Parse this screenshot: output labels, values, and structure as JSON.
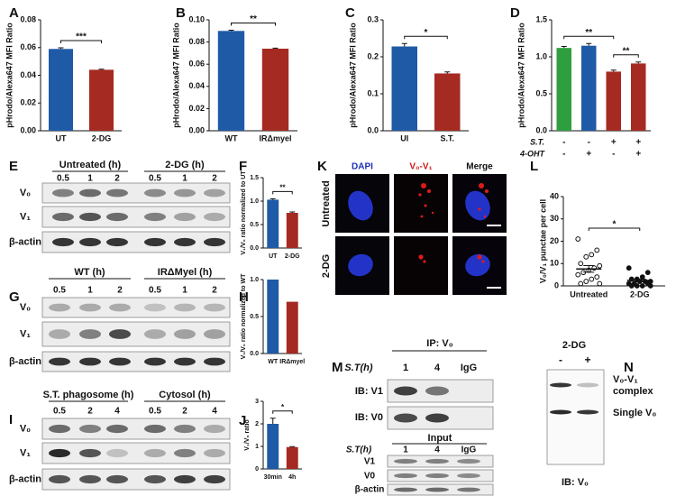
{
  "chart_data": [
    {
      "panel": "A",
      "type": "bar",
      "ylabel": "pHrodo/Alexa647 MFI Ratio",
      "categories": [
        "UT",
        "2-DG"
      ],
      "values": [
        0.059,
        0.044
      ],
      "errors": [
        0.0008,
        0.0004
      ],
      "colors": [
        "#1f5aa6",
        "#a52a22"
      ],
      "ylim": [
        0,
        0.08
      ],
      "yticks": [
        {
          "value": 0,
          "label": "0.00"
        },
        {
          "value": 0.02,
          "label": "0.02"
        },
        {
          "value": 0.04,
          "label": "0.04"
        },
        {
          "value": 0.06,
          "label": "0.06"
        },
        {
          "value": 0.08,
          "label": "0.08"
        }
      ],
      "significance": [
        "***"
      ]
    },
    {
      "panel": "B",
      "type": "bar",
      "ylabel": "pHrodo/Alexa647 MFI Ratio",
      "categories": [
        "WT",
        "IRΔmyel"
      ],
      "values": [
        0.09,
        0.074
      ],
      "errors": [
        0.0006,
        0.0005
      ],
      "colors": [
        "#1f5aa6",
        "#a52a22"
      ],
      "ylim": [
        0,
        0.1
      ],
      "yticks": [
        {
          "value": 0,
          "label": "0.00"
        },
        {
          "value": 0.02,
          "label": "0.02"
        },
        {
          "value": 0.04,
          "label": "0.04"
        },
        {
          "value": 0.06,
          "label": "0.06"
        },
        {
          "value": 0.08,
          "label": "0.08"
        },
        {
          "value": 0.1,
          "label": "0.10"
        }
      ],
      "significance": [
        "**"
      ]
    },
    {
      "panel": "C",
      "type": "bar",
      "ylabel": "pHrodo/Alexa647 MFI Ratio",
      "categories": [
        "UI",
        "S.T."
      ],
      "values": [
        0.228,
        0.155
      ],
      "errors": [
        0.008,
        0.004
      ],
      "colors": [
        "#1f5aa6",
        "#a52a22"
      ],
      "ylim": [
        0,
        0.3
      ],
      "yticks": [
        {
          "value": 0,
          "label": "0.0"
        },
        {
          "value": 0.1,
          "label": "0.1"
        },
        {
          "value": 0.2,
          "label": "0.2"
        },
        {
          "value": 0.3,
          "label": "0.3"
        }
      ],
      "significance": [
        "*"
      ]
    },
    {
      "panel": "D",
      "type": "bar",
      "ylabel": "pHrodo/Alexa647 MFI Ratio",
      "values": [
        1.12,
        1.15,
        0.8,
        0.91
      ],
      "errors": [
        0.02,
        0.03,
        0.02,
        0.02
      ],
      "colors": [
        "#2e9e3e",
        "#1f5aa6",
        "#a52a22",
        "#a52a22"
      ],
      "ylim": [
        0,
        1.5
      ],
      "yticks": [
        {
          "value": 0,
          "label": "0.0"
        },
        {
          "value": 0.5,
          "label": "0.5"
        },
        {
          "value": 1,
          "label": "1.0"
        },
        {
          "value": 1.5,
          "label": "1.5"
        }
      ],
      "conditions": [
        {
          "label": "S.T.",
          "values": [
            "-",
            "-",
            "+",
            "+"
          ]
        },
        {
          "label": "4-OHT",
          "values": [
            "-",
            "+",
            "-",
            "+"
          ]
        }
      ],
      "significance": [
        "**",
        "**"
      ]
    },
    {
      "panel": "F",
      "type": "bar",
      "ylabel": "V₁/V₀ ratio normalized to UT",
      "categories": [
        "UT",
        "2-DG"
      ],
      "values": [
        1.03,
        0.75
      ],
      "errors": [
        0.02,
        0.02
      ],
      "colors": [
        "#1f5aa6",
        "#a52a22"
      ],
      "ylim": [
        0,
        1.5
      ],
      "yticks": [
        {
          "value": 0,
          "label": "0.0"
        },
        {
          "value": 0.5,
          "label": "0.5"
        },
        {
          "value": 1,
          "label": "1.0"
        },
        {
          "value": 1.5,
          "label": "1.5"
        }
      ],
      "significance": [
        "**"
      ]
    },
    {
      "panel": "H",
      "type": "bar",
      "ylabel": "V₁/V₀ ratio normalized to WT",
      "categories": [
        "WT",
        "IRΔmyel"
      ],
      "values": [
        1.0,
        0.7
      ],
      "colors": [
        "#1f5aa6",
        "#a52a22"
      ],
      "ylim": [
        0,
        1
      ],
      "yticks": [
        {
          "value": 0,
          "label": "0.0"
        },
        {
          "value": 0.5,
          "label": "0.5"
        },
        {
          "value": 1,
          "label": "1.0"
        }
      ]
    },
    {
      "panel": "J",
      "type": "bar",
      "ylabel": "V₁/V₀ ratio",
      "categories": [
        "30min",
        "4h"
      ],
      "values": [
        2.0,
        0.97
      ],
      "errors": [
        0.25,
        0.02
      ],
      "colors": [
        "#1f5aa6",
        "#a52a22"
      ],
      "ylim": [
        0,
        3
      ],
      "yticks": [
        0,
        1,
        2,
        3
      ],
      "significance": [
        "*"
      ]
    },
    {
      "panel": "L",
      "type": "dot",
      "ylabel": "V₀/V₁ punctae per cell",
      "categories": [
        "Untreated",
        "2-DG"
      ],
      "points": [
        [
          21,
          16,
          14,
          13,
          10,
          9,
          8,
          7,
          6,
          5,
          4,
          3,
          2,
          1,
          1
        ],
        [
          8,
          6,
          4,
          3,
          3,
          2,
          2,
          2,
          1,
          1,
          1,
          0,
          0,
          0,
          0
        ]
      ],
      "means": [
        7.6,
        2.4
      ],
      "errors": [
        1.5,
        0.6
      ],
      "ylim": [
        0,
        40
      ],
      "yticks": [
        0,
        10,
        20,
        30,
        40
      ],
      "significance": [
        "*"
      ]
    }
  ],
  "blots": [
    {
      "panel": "E",
      "groups": [
        {
          "label": "Untreated (h)",
          "lanes": [
            "0.5",
            "1",
            "2"
          ]
        },
        {
          "label": "2-DG (h)",
          "lanes": [
            "0.5",
            "1",
            "2"
          ]
        }
      ],
      "rows": [
        "V₀",
        "V₁",
        "β-actin"
      ]
    },
    {
      "panel": "G",
      "groups": [
        {
          "label": "WT (h)",
          "lanes": [
            "0.5",
            "1",
            "2"
          ]
        },
        {
          "label": "IRΔMyel (h)",
          "lanes": [
            "0.5",
            "1",
            "2"
          ]
        }
      ],
      "rows": [
        "V₀",
        "V₁",
        "β-actin"
      ]
    },
    {
      "panel": "I",
      "groups": [
        {
          "label": "S.T. phagosome (h)",
          "lanes": [
            "0.5",
            "2",
            "4"
          ]
        },
        {
          "label": "Cytosol (h)",
          "lanes": [
            "0.5",
            "2",
            "4"
          ]
        }
      ],
      "rows": [
        "V₀",
        "V₁",
        "β-actin"
      ]
    }
  ],
  "immunoprecipitation": {
    "panel": "M",
    "sections": [
      {
        "title": "IP: V₀",
        "condition": "S.T(h)",
        "lanes": [
          "1",
          "4",
          "IgG"
        ],
        "rows": [
          "IB: V1",
          "IB: V0"
        ]
      },
      {
        "title": "Input",
        "condition": "S.T(h)",
        "lanes": [
          "1",
          "4",
          "IgG"
        ],
        "rows": [
          "V1",
          "V0",
          "β-actin"
        ]
      }
    ]
  },
  "native_blot": {
    "panel": "N",
    "title": "2-DG",
    "lanes": [
      "-",
      "+"
    ],
    "band_labels": [
      "V₀-V₁",
      "complex",
      "Single V₀"
    ],
    "footer": "IB: V₀"
  },
  "microscopy": {
    "panel": "K",
    "columns": [
      "DAPI",
      "V₀-V₁",
      "Merge"
    ],
    "rows": [
      "Untreated",
      "2-DG"
    ]
  }
}
